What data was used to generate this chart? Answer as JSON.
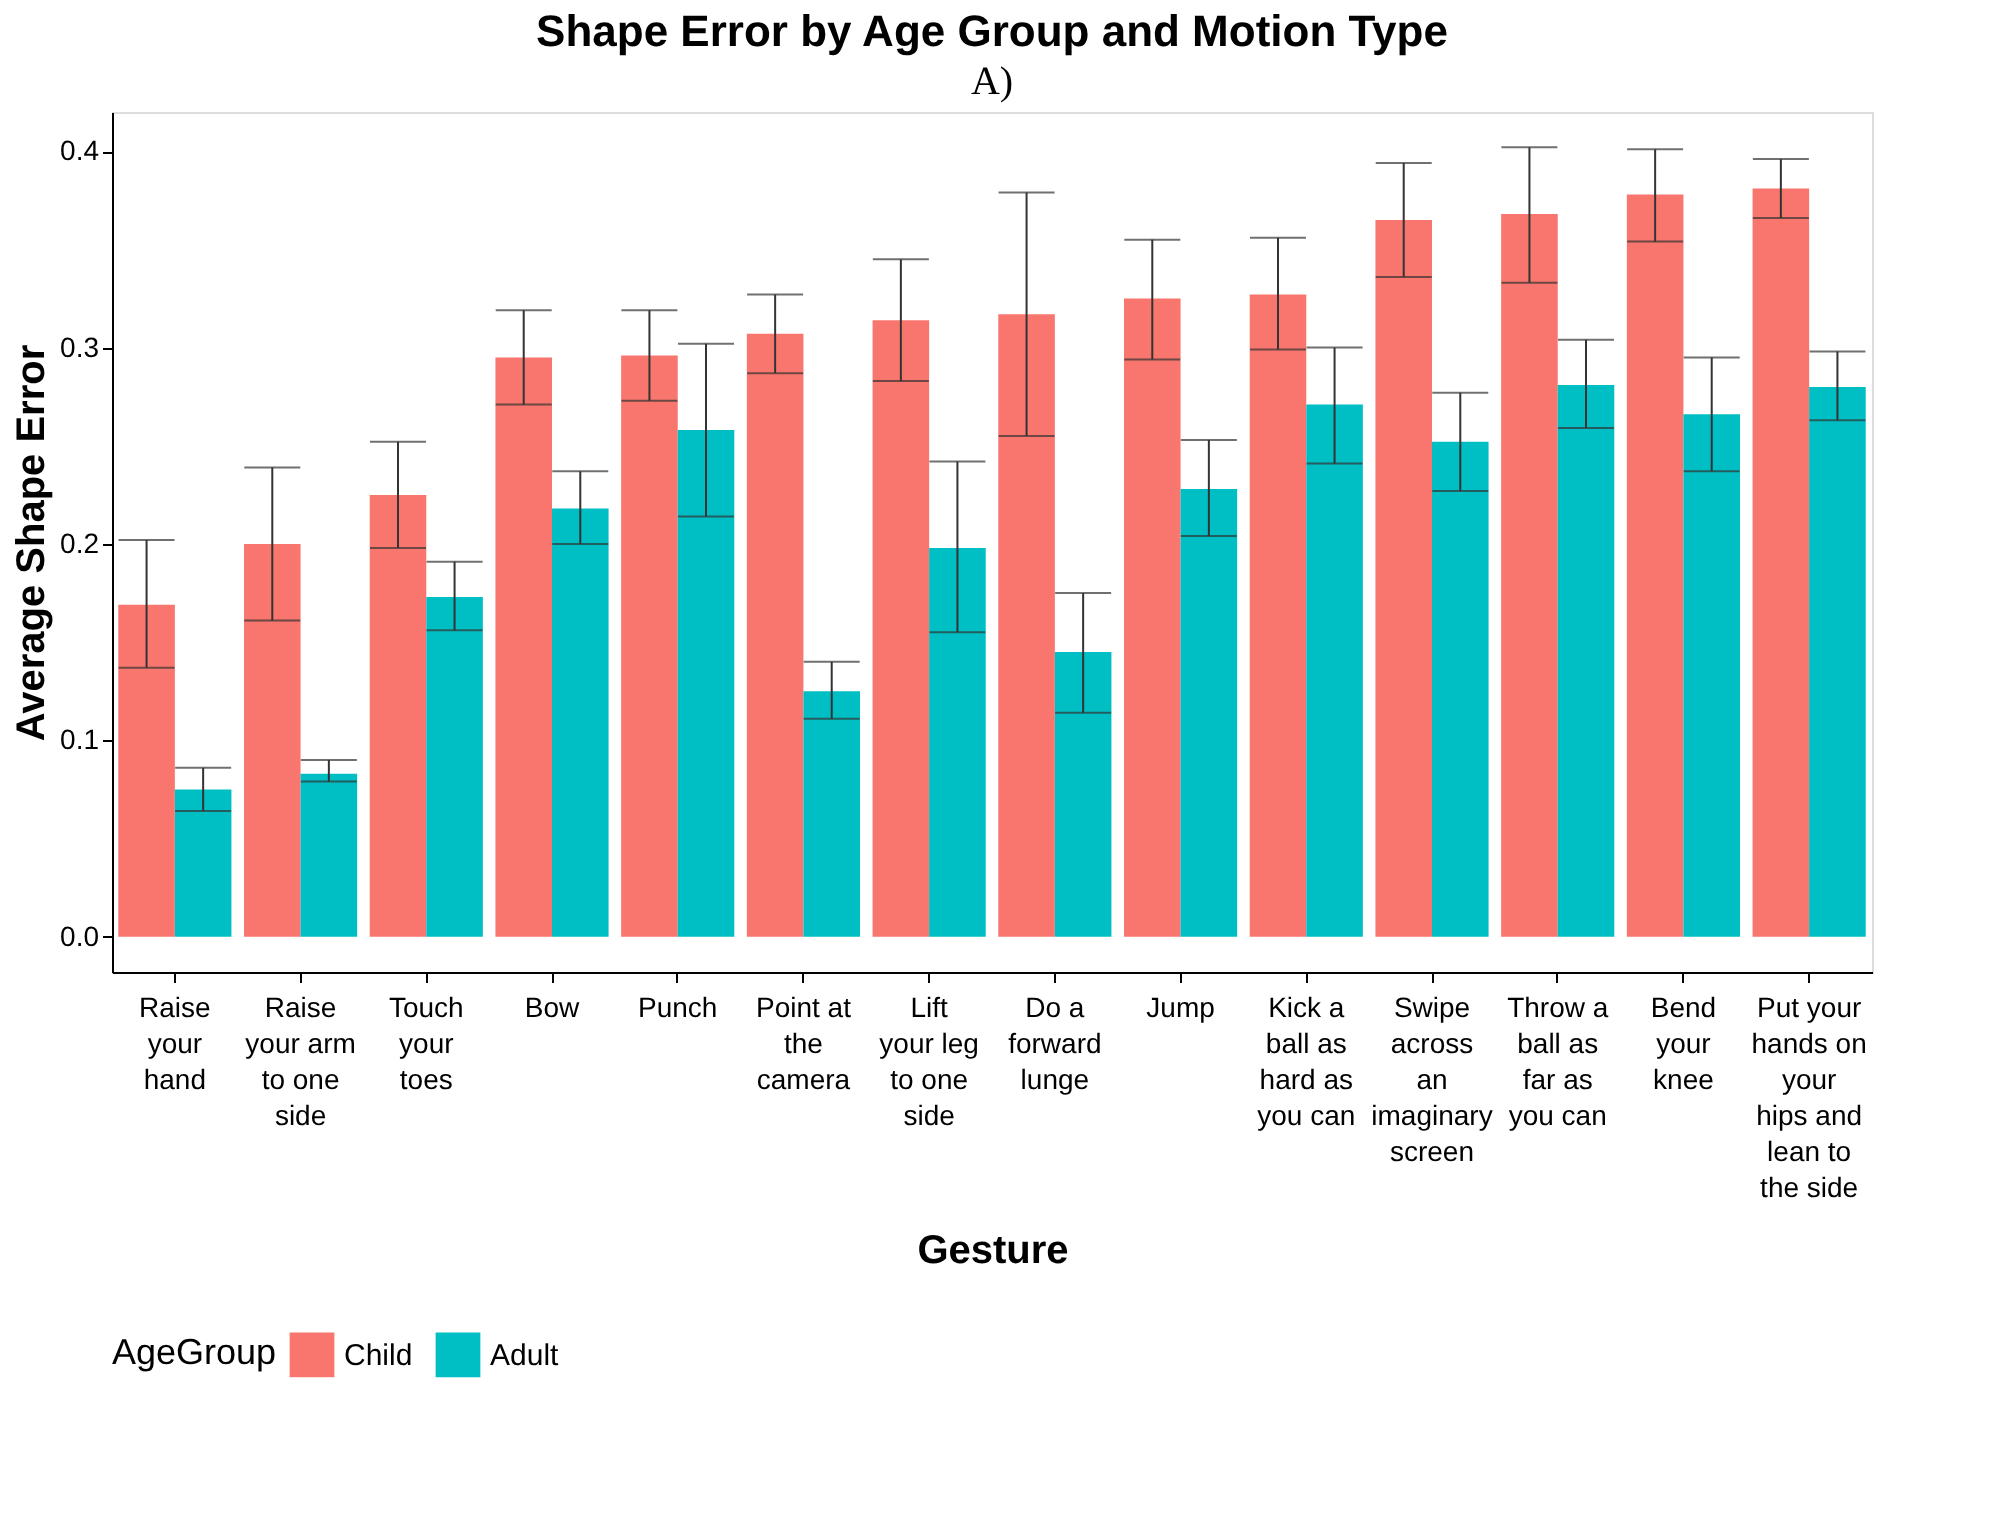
{
  "chart_data": {
    "type": "bar",
    "title": "Shape Error by Age Group and Motion Type",
    "xlabel": "Gesture",
    "ylabel": "Average Shape Error",
    "legend_title": "AgeGroup",
    "legend": "bottom",
    "grid": false,
    "annotations": [
      "A)"
    ],
    "categories": [
      "Raise your hand",
      "Raise your arm to one side",
      "Touch your toes",
      "Bow",
      "Punch",
      "Point at the camera",
      "Lift your leg to one side",
      "Do a forward lunge",
      "Jump",
      "Kick a ball as hard as you can",
      "Swipe across an imaginary screen",
      "Throw a ball as far as you can",
      "Bend your knee",
      "Put your hands on your hips and lean to the side"
    ],
    "ylim": [
      -0.018,
      0.42
    ],
    "yticks": [
      {
        "value": 0,
        "label": "0.0"
      },
      0.1,
      0.2,
      0.3,
      0.4
    ],
    "series": [
      {
        "name": "Child",
        "color": "#f8766d",
        "values": [
          0.169,
          0.2,
          0.225,
          0.295,
          0.296,
          0.307,
          0.314,
          0.317,
          0.325,
          0.327,
          0.365,
          0.368,
          0.378,
          0.381
        ],
        "errors": [
          [
            0.137,
            0.202
          ],
          [
            0.161,
            0.239
          ],
          [
            0.198,
            0.252
          ],
          [
            0.271,
            0.319
          ],
          [
            0.273,
            0.319
          ],
          [
            0.287,
            0.327
          ],
          [
            0.283,
            0.345
          ],
          [
            0.255,
            0.379
          ],
          [
            0.294,
            0.355
          ],
          [
            0.299,
            0.356
          ],
          [
            0.336,
            0.394
          ],
          [
            0.333,
            0.402
          ],
          [
            0.354,
            0.401
          ],
          [
            0.366,
            0.396
          ]
        ]
      },
      {
        "name": "Adult",
        "color": "#00bfc4",
        "values": [
          0.075,
          0.083,
          0.173,
          0.218,
          0.258,
          0.125,
          0.198,
          0.145,
          0.228,
          0.271,
          0.252,
          0.281,
          0.266,
          0.28
        ],
        "errors": [
          [
            0.064,
            0.086
          ],
          [
            0.079,
            0.09
          ],
          [
            0.156,
            0.191
          ],
          [
            0.2,
            0.237
          ],
          [
            0.214,
            0.302
          ],
          [
            0.111,
            0.14
          ],
          [
            0.155,
            0.242
          ],
          [
            0.114,
            0.175
          ],
          [
            0.204,
            0.253
          ],
          [
            0.241,
            0.3
          ],
          [
            0.227,
            0.277
          ],
          [
            0.259,
            0.304
          ],
          [
            0.237,
            0.295
          ],
          [
            0.263,
            0.298
          ]
        ]
      }
    ]
  }
}
